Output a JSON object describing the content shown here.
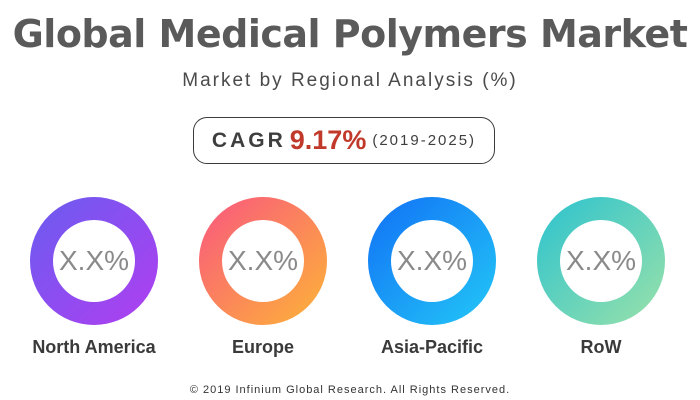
{
  "header": {
    "title": "Global Medical Polymers Market",
    "subtitle": "Market by Regional Analysis (%)"
  },
  "cagr": {
    "label": "CAGR",
    "value": "9.17%",
    "period": "(2019-2025)",
    "value_color": "#c0392b"
  },
  "chart_data": {
    "type": "pie",
    "title": "Global Medical Polymers Market",
    "subtitle": "Market by Regional Analysis (%)",
    "categories": [
      "North America",
      "Europe",
      "Asia-Pacific",
      "RoW"
    ],
    "value_labels": [
      "X.X%",
      "X.X%",
      "X.X%",
      "X.X%"
    ],
    "colors": [
      [
        "#6a5cf0",
        "#b13ef0"
      ],
      [
        "#f9567f",
        "#fdb537"
      ],
      [
        "#1170f5",
        "#23c8f7"
      ],
      [
        "#2cc2cf",
        "#9ae2a9"
      ]
    ]
  },
  "footer": {
    "copyright": "© 2019 Infinium Global Research. All Rights Reserved."
  }
}
